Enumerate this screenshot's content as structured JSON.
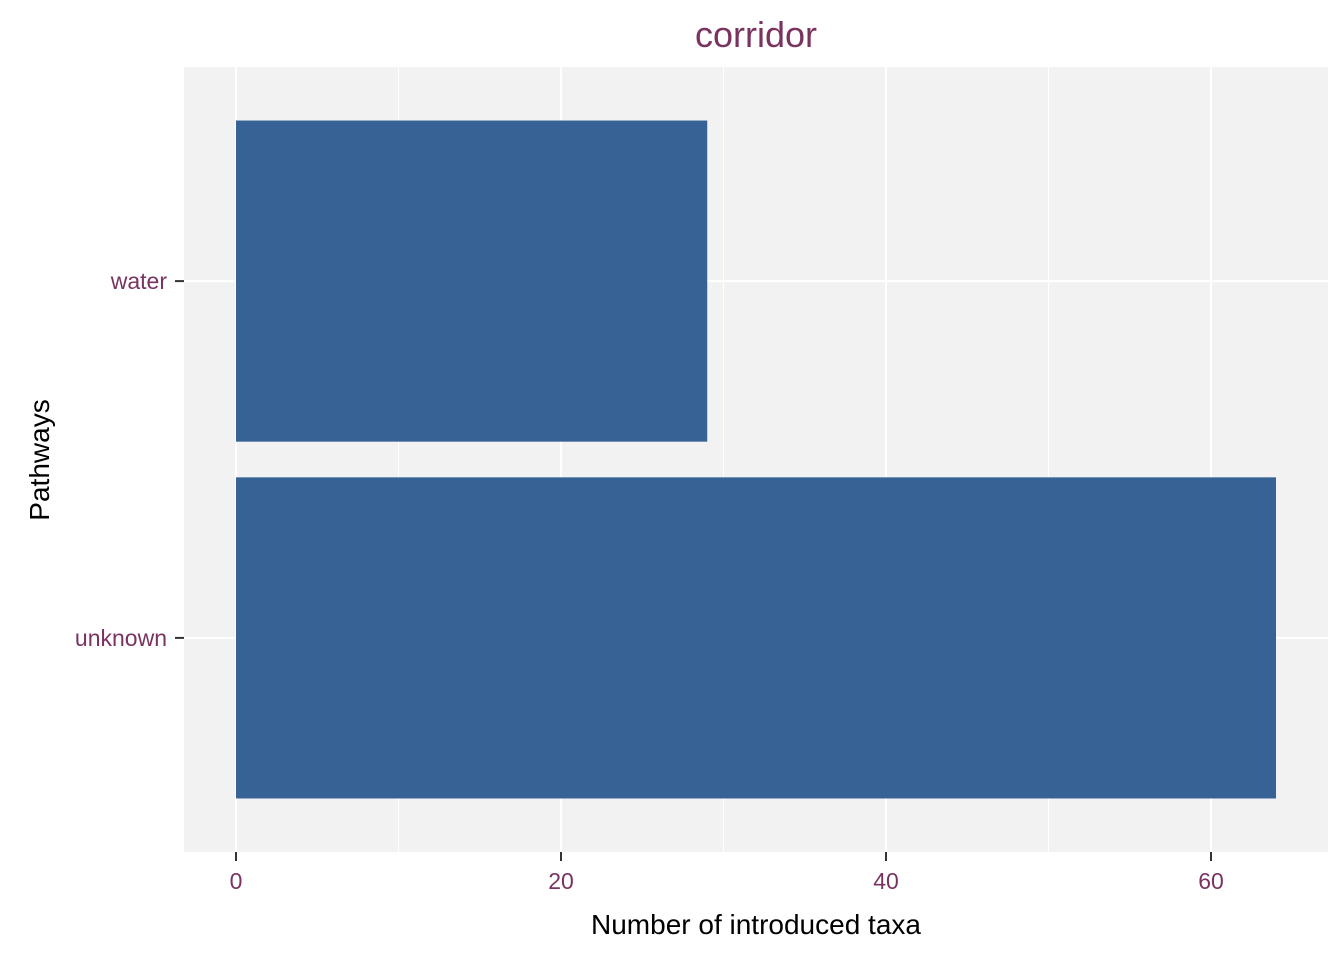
{
  "chart_data": {
    "type": "bar",
    "orientation": "horizontal",
    "title": "corridor",
    "xlabel": "Number of introduced taxa",
    "ylabel": "Pathways",
    "categories": [
      "water",
      "unknown"
    ],
    "values": [
      29,
      64
    ],
    "xlim": [
      -3.2,
      67.2
    ],
    "xticks": [
      0,
      20,
      40,
      60
    ],
    "xtick_labels": [
      "0",
      "20",
      "40",
      "60"
    ],
    "grid": true,
    "legend": "none",
    "colors": {
      "bar": "#376295",
      "panel": "#f2f2f2",
      "grid": "#ffffff",
      "title": "#7a3361",
      "tick_labels": "#7a3361",
      "axis_titles": "#000000"
    }
  }
}
